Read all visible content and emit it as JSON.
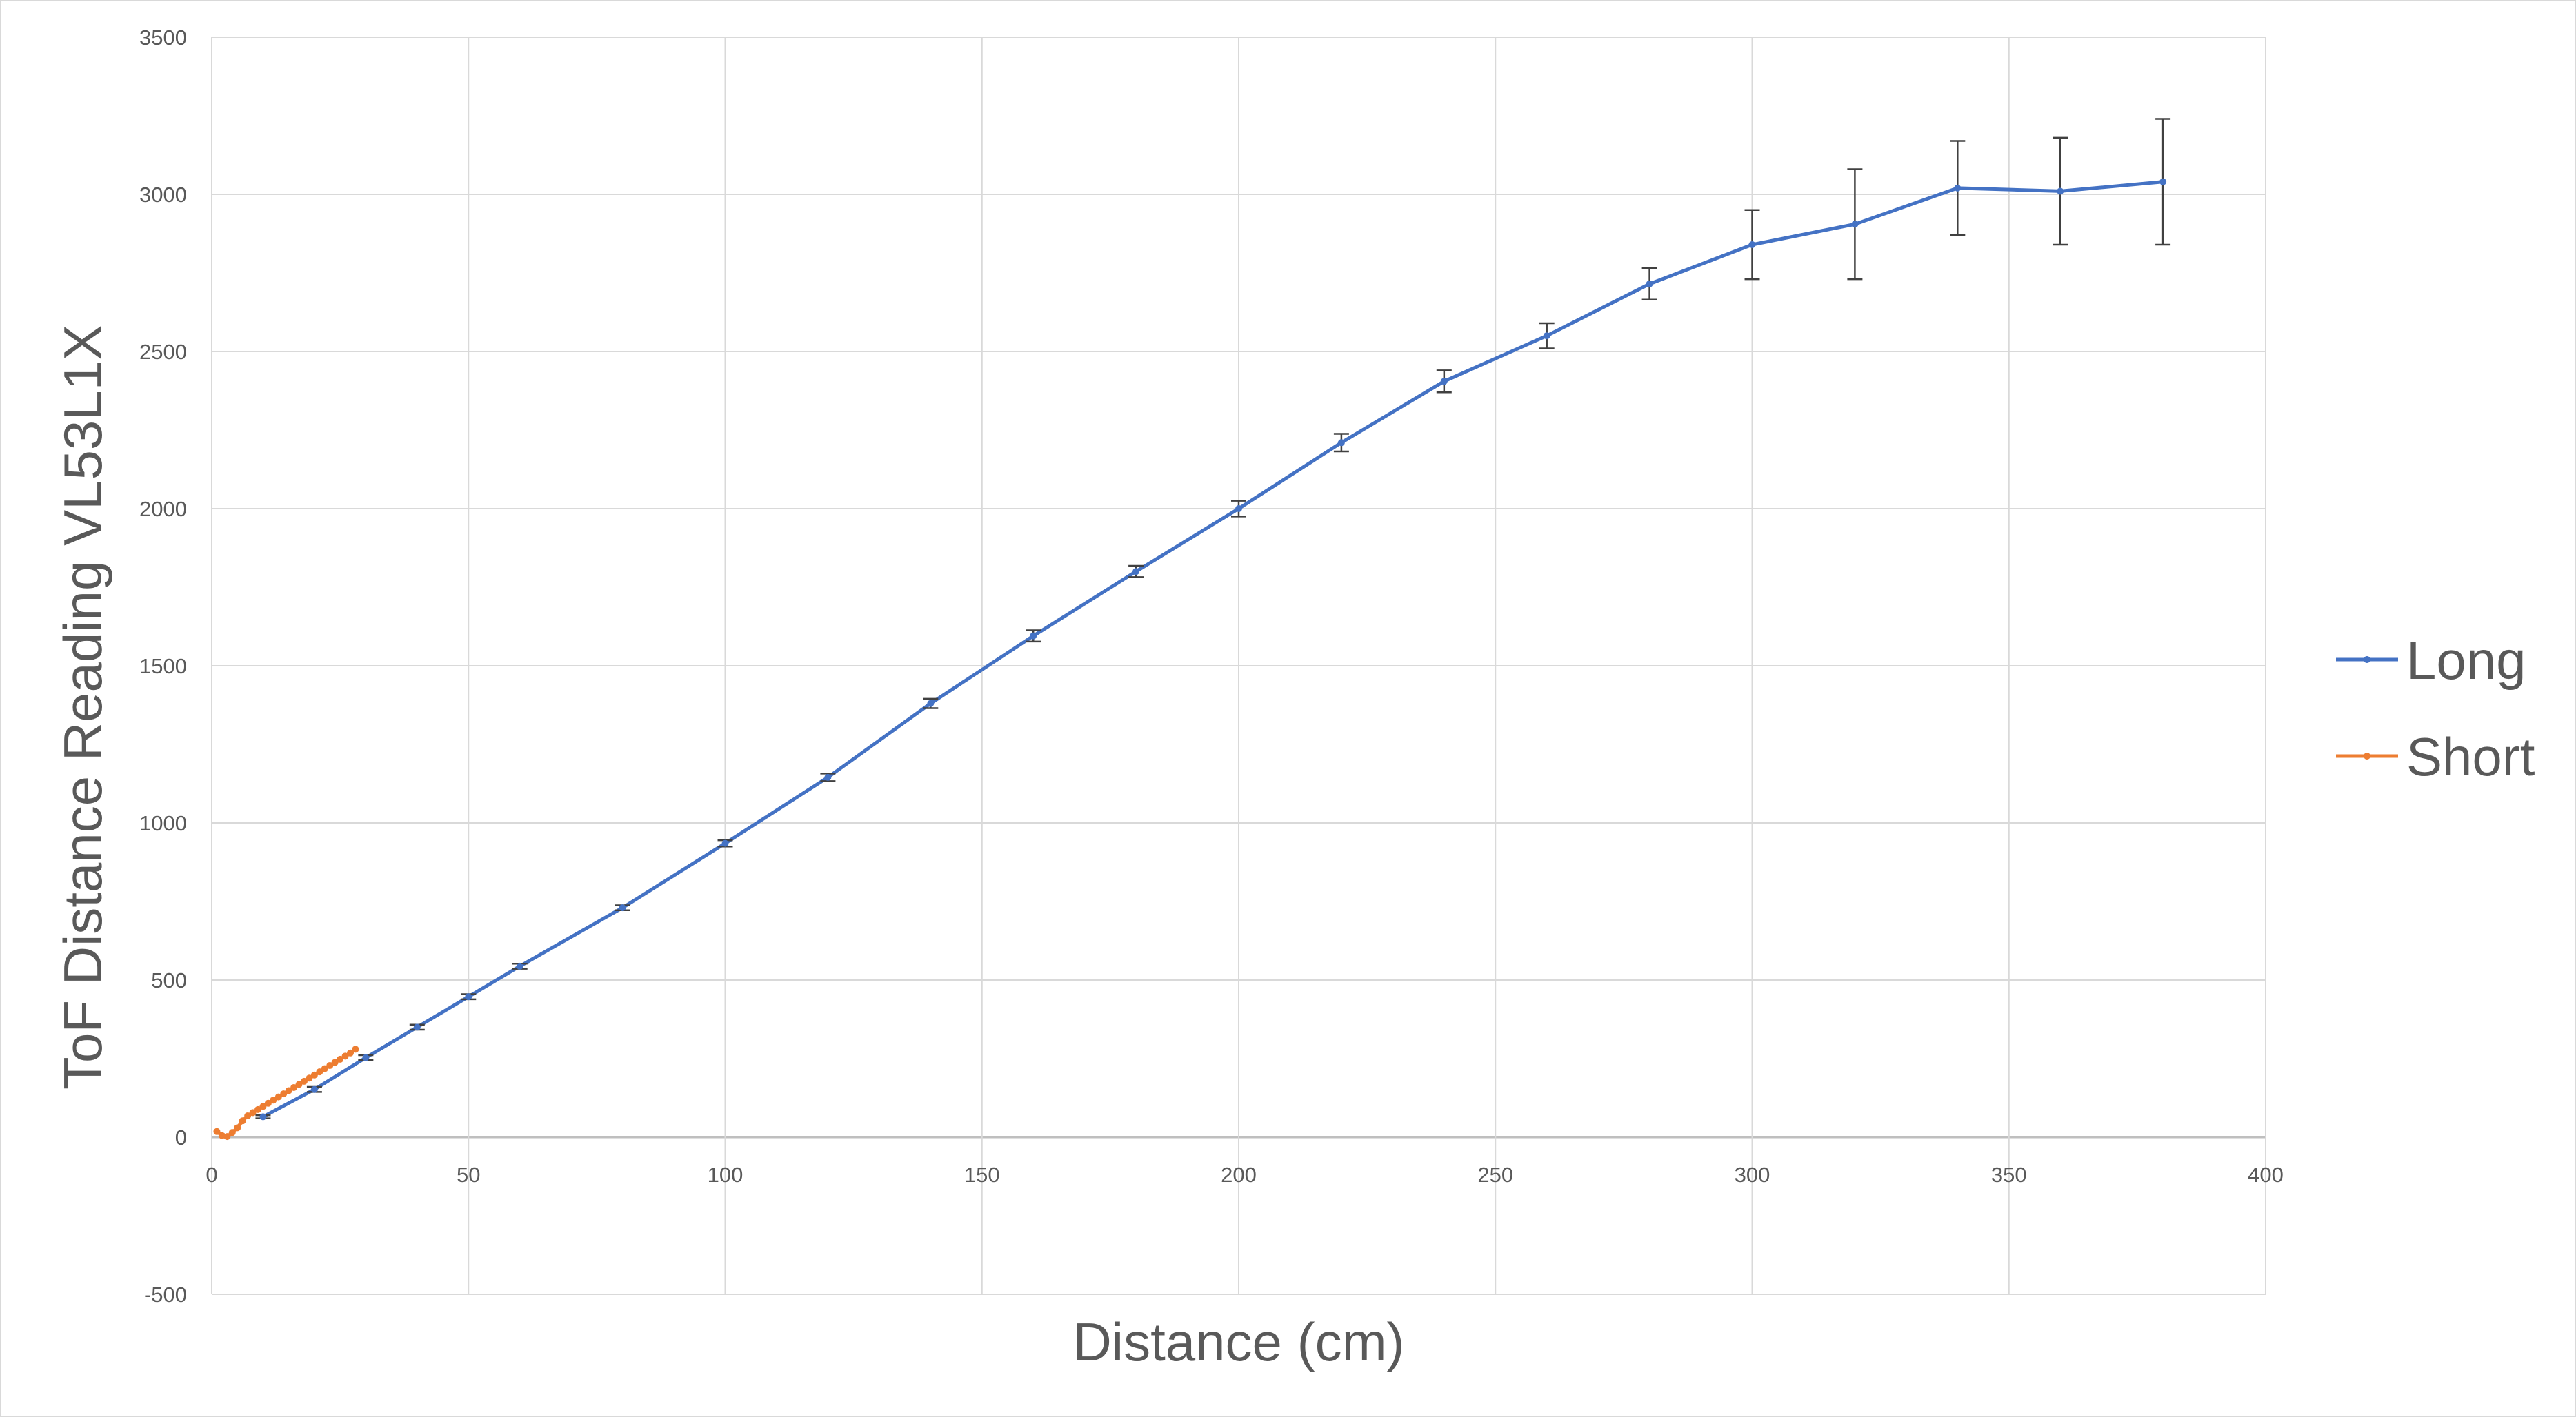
{
  "chart_data": {
    "type": "line",
    "title": "",
    "xlabel": "Distance (cm)",
    "ylabel": "ToF Distance Reading VL53L1X",
    "xlim": [
      0,
      400
    ],
    "ylim": [
      -500,
      3500
    ],
    "x_ticks": [
      0,
      50,
      100,
      150,
      200,
      250,
      300,
      350,
      400
    ],
    "y_ticks": [
      -500,
      0,
      500,
      1000,
      1500,
      2000,
      2500,
      3000,
      3500
    ],
    "grid": true,
    "legend_position": "right",
    "series": [
      {
        "name": "Long",
        "color": "#4472c4",
        "x": [
          10,
          20,
          30,
          40,
          50,
          60,
          80,
          100,
          120,
          140,
          160,
          180,
          200,
          220,
          240,
          260,
          280,
          300,
          320,
          340,
          360,
          380
        ],
        "y": [
          65,
          152,
          253,
          350,
          447,
          544,
          730,
          935,
          1145,
          1380,
          1595,
          1800,
          2000,
          2210,
          2405,
          2550,
          2715,
          2840,
          2905,
          3020,
          3010,
          3040
        ],
        "error": [
          5,
          8,
          8,
          8,
          8,
          8,
          8,
          10,
          12,
          15,
          18,
          18,
          25,
          28,
          35,
          40,
          50,
          110,
          175,
          150,
          170,
          200
        ]
      },
      {
        "name": "Short",
        "color": "#ed7d31",
        "x": [
          1,
          2,
          3,
          4,
          5,
          6,
          7,
          8,
          9,
          10,
          11,
          12,
          13,
          14,
          15,
          16,
          17,
          18,
          19,
          20,
          21,
          22,
          23,
          24,
          25,
          26,
          27,
          28
        ],
        "y": [
          18,
          5,
          2,
          15,
          30,
          52,
          68,
          78,
          88,
          98,
          108,
          118,
          128,
          138,
          148,
          158,
          168,
          178,
          188,
          198,
          208,
          218,
          228,
          238,
          248,
          258,
          268,
          280
        ]
      }
    ]
  }
}
